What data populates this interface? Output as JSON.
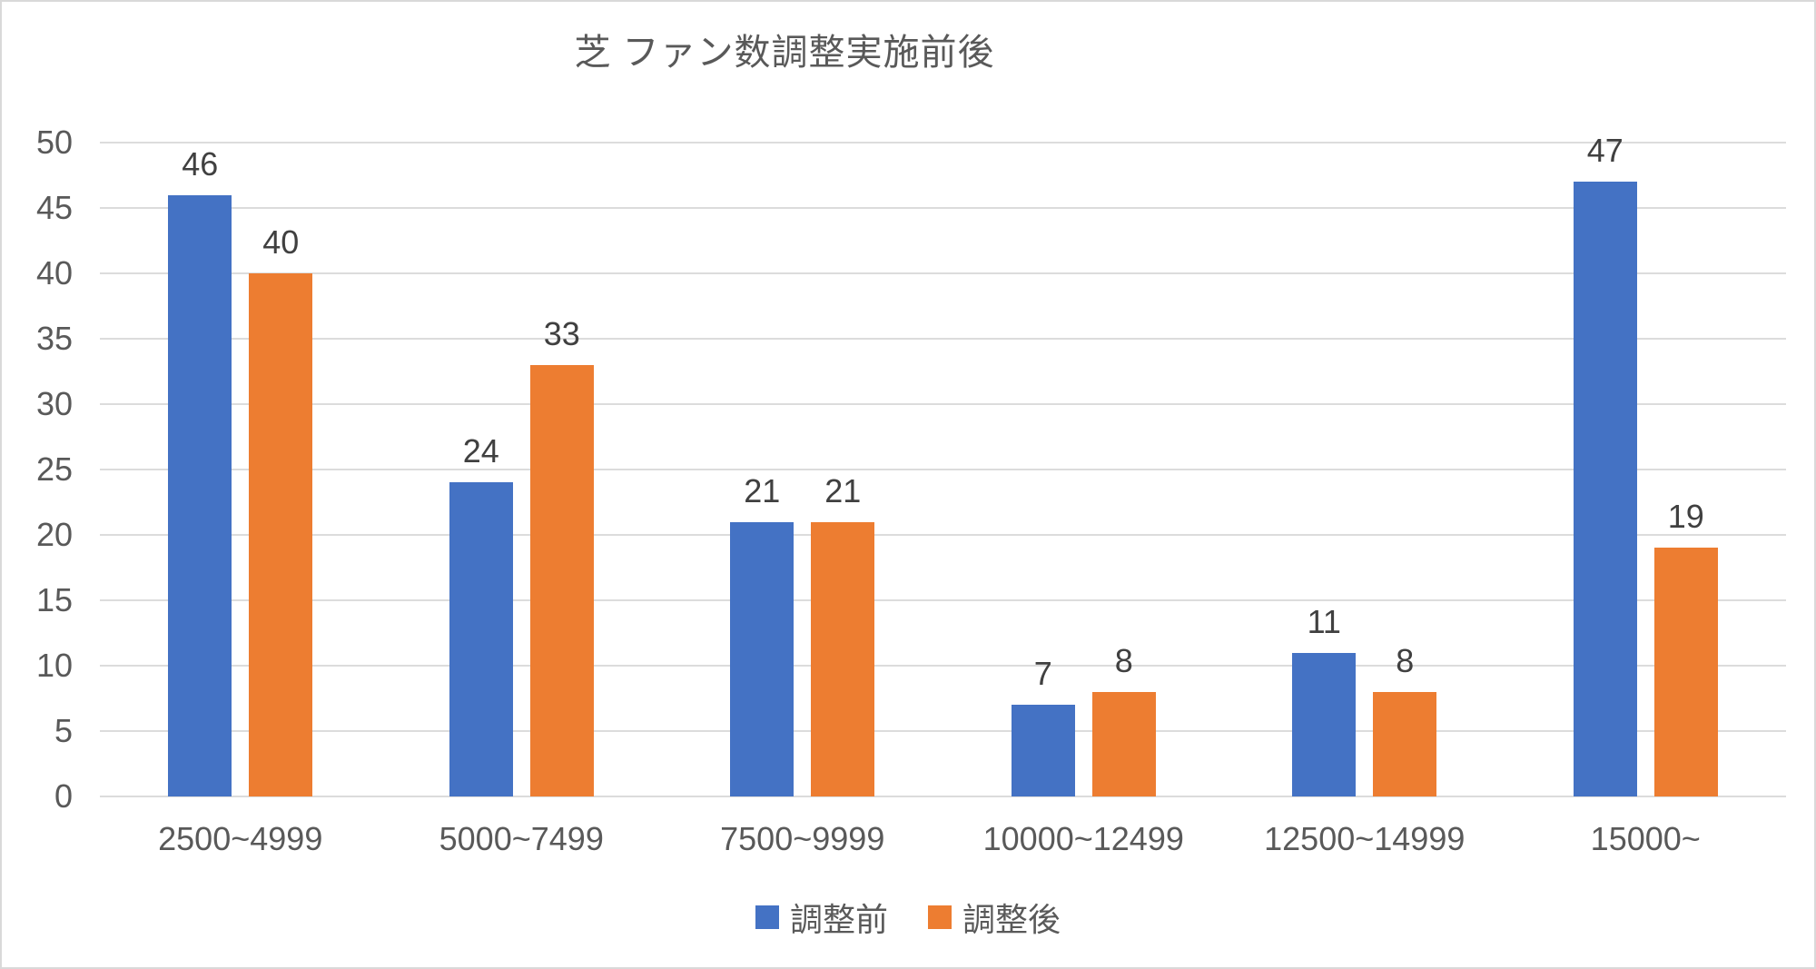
{
  "chart_data": {
    "type": "bar",
    "title": "芝 ファン数調整実施前後",
    "categories": [
      "2500~4999",
      "5000~7499",
      "7500~9999",
      "10000~12499",
      "12500~14999",
      "15000~"
    ],
    "series": [
      {
        "name": "調整前",
        "color": "#4472C4",
        "values": [
          46,
          24,
          21,
          7,
          11,
          47
        ]
      },
      {
        "name": "調整後",
        "color": "#ED7D31",
        "values": [
          40,
          33,
          21,
          8,
          8,
          19
        ]
      }
    ],
    "xlabel": "",
    "ylabel": "",
    "ylim": [
      0,
      50
    ],
    "ytick_step": 5,
    "yticks": [
      "0",
      "5",
      "10",
      "15",
      "20",
      "25",
      "30",
      "35",
      "40",
      "45",
      "50"
    ],
    "grid": true,
    "data_labels": true,
    "legend_position": "bottom"
  },
  "colors": {
    "series_before": "#4472C4",
    "series_after": "#ED7D31",
    "title_text": "#595959",
    "axis_text": "#595959",
    "data_label_text": "#404040",
    "gridline": "#DCDCDC",
    "border": "#D9D9D9",
    "background": "#FFFFFF"
  }
}
